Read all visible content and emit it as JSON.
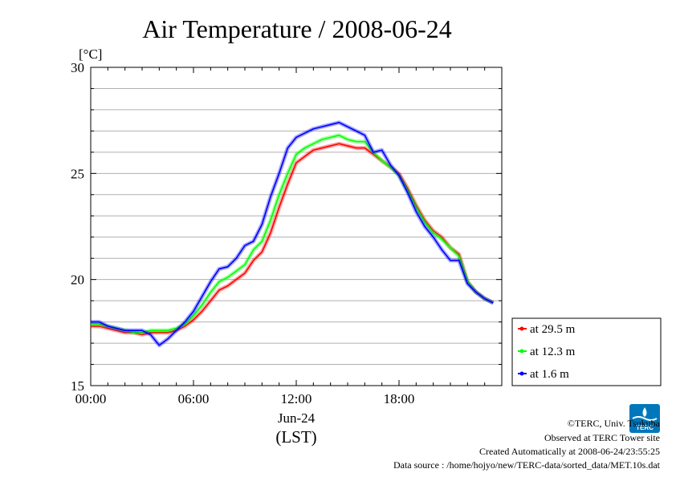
{
  "chart_data": {
    "type": "line",
    "title": "Air Temperature / 2008-06-24",
    "ylabel": "[°C]",
    "xlabel": "(LST)",
    "date_label": "Jun-24",
    "ylim": [
      15,
      30
    ],
    "xlim": [
      0,
      24
    ],
    "y_ticks": [
      15,
      20,
      25,
      30
    ],
    "x_ticks": [
      "00:00",
      "06:00",
      "12:00",
      "18:00"
    ],
    "grid": true,
    "legend_position": "right-bottom",
    "series": [
      {
        "name": "at 29.5 m",
        "color": "#ff0000",
        "x": [
          0,
          0.5,
          1,
          1.5,
          2,
          2.5,
          3,
          3.5,
          4,
          4.5,
          5,
          5.5,
          6,
          6.5,
          7,
          7.5,
          8,
          8.5,
          9,
          9.5,
          10,
          10.5,
          11,
          11.5,
          12,
          12.5,
          13,
          13.5,
          14,
          14.5,
          15,
          15.5,
          16,
          16.5,
          17,
          17.5,
          18,
          18.5,
          19,
          19.5,
          20,
          20.5,
          21,
          21.5,
          22,
          22.5,
          23,
          23.5
        ],
        "values": [
          17.8,
          17.8,
          17.7,
          17.6,
          17.5,
          17.5,
          17.4,
          17.5,
          17.5,
          17.5,
          17.6,
          17.8,
          18.1,
          18.5,
          19.0,
          19.5,
          19.7,
          20.0,
          20.3,
          20.9,
          21.3,
          22.2,
          23.4,
          24.5,
          25.5,
          25.8,
          26.1,
          26.2,
          26.3,
          26.4,
          26.3,
          26.2,
          26.2,
          25.9,
          25.6,
          25.3,
          25.0,
          24.3,
          23.5,
          22.8,
          22.3,
          22.0,
          21.5,
          21.2,
          19.9,
          19.4,
          19.1,
          18.9
        ]
      },
      {
        "name": "at 12.3 m",
        "color": "#00ff00",
        "x": [
          0,
          0.5,
          1,
          1.5,
          2,
          2.5,
          3,
          3.5,
          4,
          4.5,
          5,
          5.5,
          6,
          6.5,
          7,
          7.5,
          8,
          8.5,
          9,
          9.5,
          10,
          10.5,
          11,
          11.5,
          12,
          12.5,
          13,
          13.5,
          14,
          14.5,
          15,
          15.5,
          16,
          16.5,
          17,
          17.5,
          18,
          18.5,
          19,
          19.5,
          20,
          20.5,
          21,
          21.5,
          22,
          22.5,
          23,
          23.5
        ],
        "values": [
          17.9,
          17.9,
          17.8,
          17.7,
          17.6,
          17.5,
          17.5,
          17.6,
          17.6,
          17.6,
          17.7,
          17.9,
          18.3,
          18.8,
          19.4,
          19.9,
          20.1,
          20.4,
          20.7,
          21.4,
          21.8,
          22.8,
          24.0,
          25.0,
          25.9,
          26.2,
          26.4,
          26.6,
          26.7,
          26.8,
          26.6,
          26.5,
          26.5,
          26.0,
          25.6,
          25.3,
          24.9,
          24.2,
          23.4,
          22.7,
          22.2,
          21.9,
          21.5,
          21.1,
          19.9,
          19.4,
          19.1,
          18.9
        ]
      },
      {
        "name": "at 1.6 m",
        "color": "#0000ff",
        "x": [
          0,
          0.5,
          1,
          1.5,
          2,
          2.5,
          3,
          3.5,
          4,
          4.5,
          5,
          5.5,
          6,
          6.5,
          7,
          7.5,
          8,
          8.5,
          9,
          9.5,
          10,
          10.5,
          11,
          11.5,
          12,
          12.5,
          13,
          13.5,
          14,
          14.5,
          15,
          15.5,
          16,
          16.5,
          17,
          17.5,
          18,
          18.5,
          19,
          19.5,
          20,
          20.5,
          21,
          21.5,
          22,
          22.5,
          23,
          23.5
        ],
        "values": [
          18.0,
          18.0,
          17.8,
          17.7,
          17.6,
          17.6,
          17.6,
          17.4,
          16.9,
          17.2,
          17.6,
          18.0,
          18.5,
          19.2,
          19.9,
          20.5,
          20.6,
          21.0,
          21.6,
          21.8,
          22.6,
          23.9,
          25.0,
          26.2,
          26.7,
          26.9,
          27.1,
          27.2,
          27.3,
          27.4,
          27.2,
          27.0,
          26.8,
          26.0,
          26.1,
          25.4,
          24.9,
          24.1,
          23.2,
          22.5,
          22.0,
          21.4,
          20.9,
          20.9,
          19.8,
          19.4,
          19.1,
          18.9
        ]
      }
    ]
  },
  "credits": {
    "copyright": "©TERC, Univ. Tsukuba",
    "observed": "Observed at TERC Tower site",
    "created": "Created Automatically at 2008-06-24/23:55:25",
    "source": "Data source : /home/hojyo/new/TERC-data/sorted_data/MET.10s.dat"
  },
  "logo": {
    "text": "TERC",
    "color": "#0077bb"
  }
}
